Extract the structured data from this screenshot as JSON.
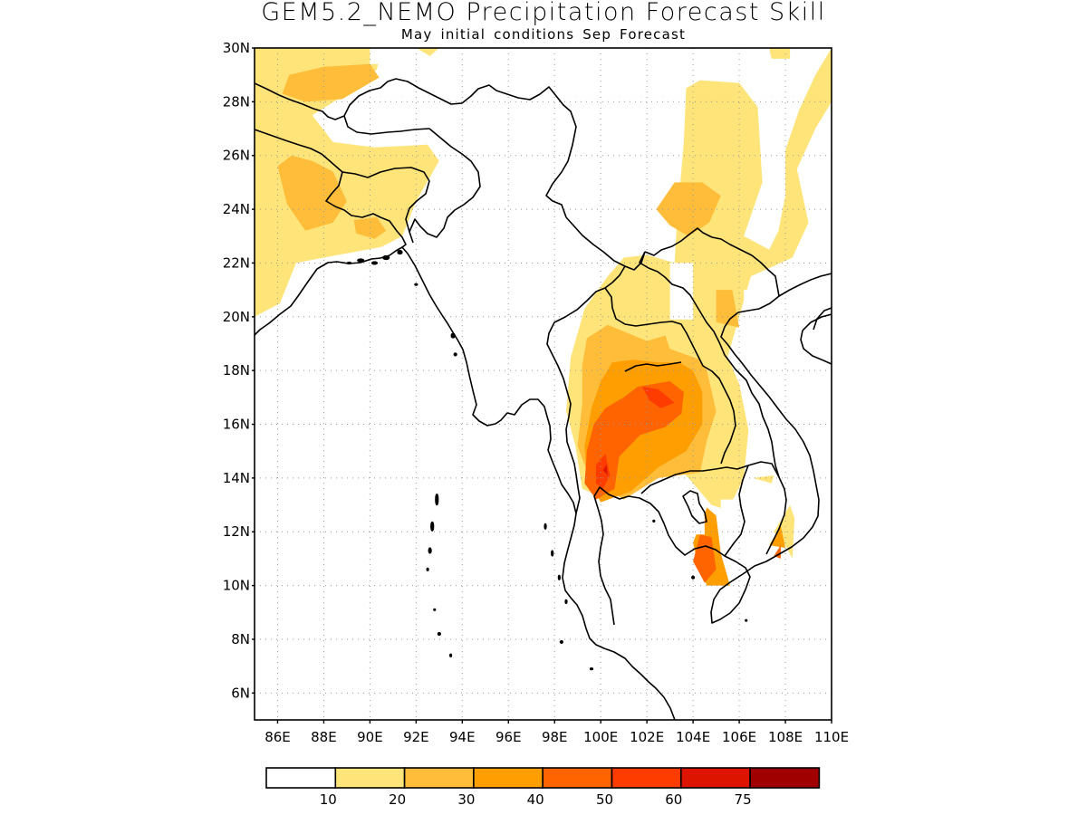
{
  "title": "GEM5.2_NEMO Precipitation Forecast Skill",
  "subtitle": "May initial conditions  Sep Forecast",
  "axes": {
    "lat_labels": [
      "30N",
      "28N",
      "26N",
      "24N",
      "22N",
      "20N",
      "18N",
      "16N",
      "14N",
      "12N",
      "10N",
      "8N",
      "6N"
    ],
    "lat_values": [
      30,
      28,
      26,
      24,
      22,
      20,
      18,
      16,
      14,
      12,
      10,
      8,
      6
    ],
    "lon_labels": [
      "86E",
      "88E",
      "90E",
      "92E",
      "94E",
      "96E",
      "98E",
      "100E",
      "102E",
      "104E",
      "106E",
      "108E",
      "110E"
    ],
    "lon_values": [
      86,
      88,
      90,
      92,
      94,
      96,
      98,
      100,
      102,
      104,
      106,
      108,
      110
    ],
    "lon_range": [
      85,
      110
    ],
    "lat_range": [
      5,
      30
    ],
    "grid": true
  },
  "legend": {
    "placement": "bottom",
    "labels": [
      "10",
      "20",
      "30",
      "40",
      "50",
      "60",
      "75"
    ],
    "colors": [
      "#ffffff",
      "#ffe47a",
      "#ffbd3a",
      "#ff9e00",
      "#ff6400",
      "#ff3c00",
      "#dc1400",
      "#a00000"
    ]
  },
  "skill_regions": [
    {
      "level": 1,
      "color": "#ffe47a",
      "polygon": [
        [
          85,
          30
        ],
        [
          90.5,
          30
        ],
        [
          90.3,
          29.2
        ],
        [
          89,
          28.3
        ],
        [
          87.5,
          27.5
        ],
        [
          88.4,
          26.5
        ],
        [
          90.2,
          26.3
        ],
        [
          92.5,
          26.4
        ],
        [
          93,
          25.8
        ],
        [
          92,
          24.3
        ],
        [
          91.4,
          23
        ],
        [
          90.5,
          22.6
        ],
        [
          88,
          22.2
        ],
        [
          86.8,
          22
        ],
        [
          86.1,
          20.5
        ],
        [
          85,
          20
        ]
      ]
    },
    {
      "level": 1,
      "color": "#ffe47a",
      "polygon": [
        [
          92,
          30
        ],
        [
          93,
          30
        ],
        [
          92.6,
          29.7
        ]
      ]
    },
    {
      "level": 1,
      "color": "#ffe47a",
      "polygon": [
        [
          100.3,
          21.5
        ],
        [
          101,
          22.2
        ],
        [
          102,
          22.3
        ],
        [
          103.2,
          22
        ],
        [
          103.3,
          23.5
        ],
        [
          103.6,
          26.5
        ],
        [
          103.7,
          28.5
        ],
        [
          104.3,
          28.8
        ],
        [
          106,
          28.7
        ],
        [
          106.8,
          27.8
        ],
        [
          107,
          25
        ],
        [
          106.2,
          23
        ],
        [
          107.3,
          22.5
        ],
        [
          107.7,
          23.2
        ],
        [
          108,
          24.5
        ],
        [
          108,
          26.2
        ],
        [
          108.6,
          27.7
        ],
        [
          109.3,
          29
        ],
        [
          110,
          30
        ],
        [
          110,
          28
        ],
        [
          109.3,
          27
        ],
        [
          108.5,
          25.5
        ],
        [
          109,
          23.5
        ],
        [
          108.3,
          22.2
        ],
        [
          106.5,
          21.5
        ],
        [
          106,
          20
        ],
        [
          105.5,
          18.5
        ],
        [
          106,
          17.5
        ],
        [
          106.4,
          15.8
        ],
        [
          106.2,
          14
        ],
        [
          105.5,
          12.8
        ],
        [
          104.8,
          13
        ],
        [
          103.5,
          14.3
        ],
        [
          101.5,
          14.5
        ],
        [
          100.3,
          13.2
        ],
        [
          99.2,
          13.6
        ],
        [
          98.9,
          15.2
        ],
        [
          98.5,
          16.5
        ],
        [
          98.7,
          18.5
        ],
        [
          99.3,
          20.3
        ]
      ]
    },
    {
      "level": 1,
      "color": "#ffe47a",
      "polygon": [
        [
          107.5,
          12
        ],
        [
          108,
          11.5
        ],
        [
          108.3,
          11
        ],
        [
          108.4,
          12.5
        ],
        [
          108.2,
          13
        ]
      ]
    },
    {
      "level": 1,
      "color": "#ffe47a",
      "polygon": [
        [
          106.6,
          14
        ],
        [
          107.5,
          14.1
        ],
        [
          107.4,
          13.8
        ]
      ]
    },
    {
      "level": 1,
      "color": "#ffe47a",
      "polygon": [
        [
          107.3,
          30
        ],
        [
          108.2,
          30
        ],
        [
          108.2,
          29.6
        ],
        [
          107.4,
          29.6
        ]
      ]
    },
    {
      "level": 2,
      "color": "#ffbd3a",
      "polygon": [
        [
          86.5,
          29
        ],
        [
          88,
          29.3
        ],
        [
          90,
          29.4
        ],
        [
          90.4,
          28.9
        ],
        [
          88.8,
          28.1
        ],
        [
          87.2,
          28
        ],
        [
          86.2,
          28.3
        ]
      ]
    },
    {
      "level": 2,
      "color": "#ffbd3a",
      "polygon": [
        [
          86,
          25.6
        ],
        [
          86.6,
          26
        ],
        [
          87.5,
          25.8
        ],
        [
          88.4,
          25.4
        ],
        [
          89,
          24.3
        ],
        [
          88.4,
          23.5
        ],
        [
          87.2,
          23.2
        ],
        [
          86.4,
          24.2
        ]
      ]
    },
    {
      "level": 2,
      "color": "#ffbd3a",
      "polygon": [
        [
          89.3,
          23.6
        ],
        [
          90.3,
          23.7
        ],
        [
          90.7,
          23.2
        ],
        [
          90.2,
          22.9
        ],
        [
          89.4,
          23.1
        ]
      ]
    },
    {
      "level": 2,
      "color": "#ffbd3a",
      "polygon": [
        [
          102.4,
          24
        ],
        [
          103.2,
          25
        ],
        [
          104.4,
          25
        ],
        [
          105.2,
          24.5
        ],
        [
          104.7,
          23.5
        ],
        [
          103.8,
          23
        ],
        [
          103,
          23.4
        ]
      ]
    },
    {
      "level": 2,
      "color": "#ffbd3a",
      "polygon": [
        [
          99.4,
          19.2
        ],
        [
          100.3,
          19.7
        ],
        [
          102,
          19.1
        ],
        [
          102.8,
          19.3
        ],
        [
          103,
          18.8
        ],
        [
          104.3,
          18.4
        ],
        [
          104.6,
          18
        ],
        [
          105,
          16.5
        ],
        [
          104.6,
          15.4
        ],
        [
          104.3,
          14.2
        ],
        [
          102.5,
          14
        ],
        [
          101,
          13.2
        ],
        [
          99.5,
          14
        ],
        [
          99,
          15.2
        ],
        [
          99.2,
          16.8
        ],
        [
          99.2,
          18.2
        ]
      ]
    },
    {
      "level": 2,
      "color": "#ffbd3a",
      "polygon": [
        [
          105,
          21
        ],
        [
          105.7,
          21
        ],
        [
          106,
          19.6
        ],
        [
          105,
          19.8
        ]
      ]
    },
    {
      "level": 3,
      "color": "#ff9e00",
      "polygon": [
        [
          100.5,
          18.3
        ],
        [
          101.4,
          18.4
        ],
        [
          102.5,
          18.3
        ],
        [
          103.4,
          18.3
        ],
        [
          104,
          18
        ],
        [
          104.4,
          17.2
        ],
        [
          104.4,
          16
        ],
        [
          103.7,
          15
        ],
        [
          102.5,
          14.4
        ],
        [
          101.3,
          13.5
        ],
        [
          100,
          13.1
        ],
        [
          99.4,
          14
        ],
        [
          99.3,
          15.2
        ],
        [
          99.6,
          16.6
        ],
        [
          100,
          17.6
        ]
      ]
    },
    {
      "level": 3,
      "color": "#ff9e00",
      "polygon": [
        [
          104,
          11.6
        ],
        [
          104.6,
          12.9
        ],
        [
          105,
          12.6
        ],
        [
          105.2,
          11.2
        ],
        [
          105.6,
          10
        ],
        [
          104.6,
          10
        ],
        [
          104.2,
          10.8
        ]
      ]
    },
    {
      "level": 3,
      "color": "#ff9e00",
      "polygon": [
        [
          107.3,
          11.5
        ],
        [
          107.8,
          12.2
        ],
        [
          108,
          11.4
        ]
      ]
    },
    {
      "level": 4,
      "color": "#ff6400",
      "polygon": [
        [
          100.2,
          16.6
        ],
        [
          101,
          17
        ],
        [
          101.6,
          17.4
        ],
        [
          103,
          17.6
        ],
        [
          103.6,
          17.2
        ],
        [
          103.5,
          16.4
        ],
        [
          102.8,
          15.9
        ],
        [
          101.7,
          15.6
        ],
        [
          100.8,
          14.8
        ],
        [
          100.6,
          13.6
        ],
        [
          99.8,
          13.2
        ],
        [
          99.3,
          13.8
        ],
        [
          99.4,
          15
        ],
        [
          99.7,
          16
        ]
      ]
    },
    {
      "level": 4,
      "color": "#ff6400",
      "polygon": [
        [
          104,
          10.9
        ],
        [
          104.3,
          11.9
        ],
        [
          104.8,
          11.8
        ],
        [
          105,
          10.6
        ],
        [
          104.5,
          10.1
        ]
      ]
    },
    {
      "level": 4,
      "color": "#ff6400",
      "polygon": [
        [
          107.5,
          11.1
        ],
        [
          107.8,
          11.5
        ],
        [
          107.8,
          11
        ]
      ]
    },
    {
      "level": 5,
      "color": "#ff3c00",
      "polygon": [
        [
          101.8,
          17.4
        ],
        [
          102.5,
          17.3
        ],
        [
          103.2,
          16.8
        ],
        [
          102.6,
          16.6
        ],
        [
          102.1,
          16.9
        ]
      ]
    },
    {
      "level": 5,
      "color": "#ff3c00",
      "polygon": [
        [
          99.8,
          14.5
        ],
        [
          100.2,
          14.9
        ],
        [
          100.4,
          14.1
        ],
        [
          100.1,
          13.6
        ],
        [
          99.8,
          13.8
        ]
      ]
    },
    {
      "level": 6,
      "color": "#dc1400",
      "polygon": [
        [
          100.1,
          14.3
        ],
        [
          100.25,
          14.5
        ],
        [
          100.3,
          14.1
        ]
      ]
    }
  ],
  "masked_cells": [
    {
      "lon": [
        90,
        90.5
      ],
      "lat": [
        29.4,
        30
      ]
    },
    {
      "lon": [
        91.5,
        92.5
      ],
      "lat": [
        22.5,
        23.2
      ]
    },
    {
      "lon": [
        103,
        104
      ],
      "lat": [
        19.9,
        22
      ]
    },
    {
      "lon": [
        103,
        104.5
      ],
      "lat": [
        11.9,
        12.6
      ]
    },
    {
      "lon": [
        107.5,
        108.5
      ],
      "lat": [
        14,
        14.5
      ]
    },
    {
      "lon": [
        105.2,
        106.5
      ],
      "lat": [
        12,
        13.2
      ]
    },
    {
      "lon": [
        106.2,
        106.8
      ],
      "lat": [
        20,
        21
      ]
    }
  ]
}
